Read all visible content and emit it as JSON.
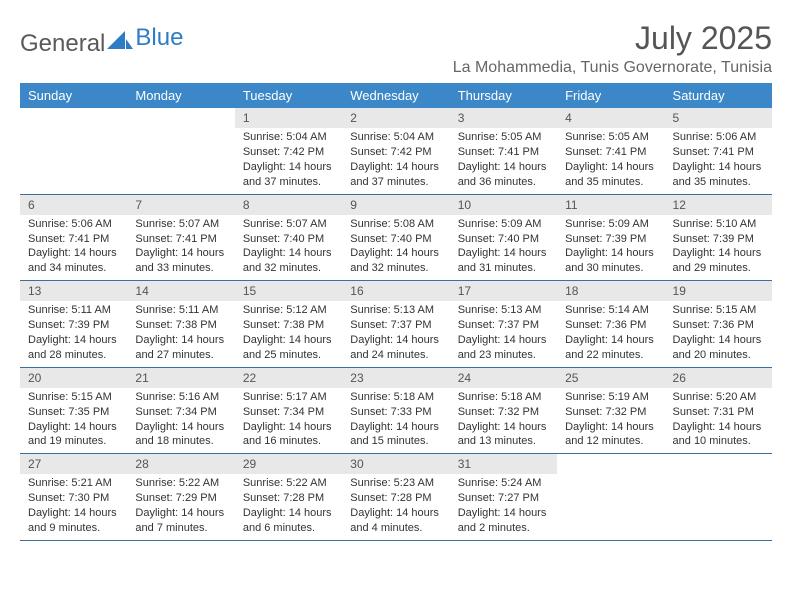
{
  "brand": {
    "part1": "General",
    "part2": "Blue"
  },
  "title": "July 2025",
  "location": "La Mohammedia, Tunis Governorate, Tunisia",
  "colors": {
    "header_bg": "#3b87c8",
    "header_text": "#ffffff",
    "daynum_bg": "#e8e8e8",
    "row_border": "#3b6fa0",
    "title_color": "#555555",
    "location_color": "#666666",
    "brand_gray": "#5a5a5a",
    "brand_blue": "#2d7dc4"
  },
  "day_headers": [
    "Sunday",
    "Monday",
    "Tuesday",
    "Wednesday",
    "Thursday",
    "Friday",
    "Saturday"
  ],
  "weeks": [
    [
      {
        "empty": true
      },
      {
        "empty": true
      },
      {
        "num": "1",
        "sunrise": "Sunrise: 5:04 AM",
        "sunset": "Sunset: 7:42 PM",
        "daylight": "Daylight: 14 hours and 37 minutes."
      },
      {
        "num": "2",
        "sunrise": "Sunrise: 5:04 AM",
        "sunset": "Sunset: 7:42 PM",
        "daylight": "Daylight: 14 hours and 37 minutes."
      },
      {
        "num": "3",
        "sunrise": "Sunrise: 5:05 AM",
        "sunset": "Sunset: 7:41 PM",
        "daylight": "Daylight: 14 hours and 36 minutes."
      },
      {
        "num": "4",
        "sunrise": "Sunrise: 5:05 AM",
        "sunset": "Sunset: 7:41 PM",
        "daylight": "Daylight: 14 hours and 35 minutes."
      },
      {
        "num": "5",
        "sunrise": "Sunrise: 5:06 AM",
        "sunset": "Sunset: 7:41 PM",
        "daylight": "Daylight: 14 hours and 35 minutes."
      }
    ],
    [
      {
        "num": "6",
        "sunrise": "Sunrise: 5:06 AM",
        "sunset": "Sunset: 7:41 PM",
        "daylight": "Daylight: 14 hours and 34 minutes."
      },
      {
        "num": "7",
        "sunrise": "Sunrise: 5:07 AM",
        "sunset": "Sunset: 7:41 PM",
        "daylight": "Daylight: 14 hours and 33 minutes."
      },
      {
        "num": "8",
        "sunrise": "Sunrise: 5:07 AM",
        "sunset": "Sunset: 7:40 PM",
        "daylight": "Daylight: 14 hours and 32 minutes."
      },
      {
        "num": "9",
        "sunrise": "Sunrise: 5:08 AM",
        "sunset": "Sunset: 7:40 PM",
        "daylight": "Daylight: 14 hours and 32 minutes."
      },
      {
        "num": "10",
        "sunrise": "Sunrise: 5:09 AM",
        "sunset": "Sunset: 7:40 PM",
        "daylight": "Daylight: 14 hours and 31 minutes."
      },
      {
        "num": "11",
        "sunrise": "Sunrise: 5:09 AM",
        "sunset": "Sunset: 7:39 PM",
        "daylight": "Daylight: 14 hours and 30 minutes."
      },
      {
        "num": "12",
        "sunrise": "Sunrise: 5:10 AM",
        "sunset": "Sunset: 7:39 PM",
        "daylight": "Daylight: 14 hours and 29 minutes."
      }
    ],
    [
      {
        "num": "13",
        "sunrise": "Sunrise: 5:11 AM",
        "sunset": "Sunset: 7:39 PM",
        "daylight": "Daylight: 14 hours and 28 minutes."
      },
      {
        "num": "14",
        "sunrise": "Sunrise: 5:11 AM",
        "sunset": "Sunset: 7:38 PM",
        "daylight": "Daylight: 14 hours and 27 minutes."
      },
      {
        "num": "15",
        "sunrise": "Sunrise: 5:12 AM",
        "sunset": "Sunset: 7:38 PM",
        "daylight": "Daylight: 14 hours and 25 minutes."
      },
      {
        "num": "16",
        "sunrise": "Sunrise: 5:13 AM",
        "sunset": "Sunset: 7:37 PM",
        "daylight": "Daylight: 14 hours and 24 minutes."
      },
      {
        "num": "17",
        "sunrise": "Sunrise: 5:13 AM",
        "sunset": "Sunset: 7:37 PM",
        "daylight": "Daylight: 14 hours and 23 minutes."
      },
      {
        "num": "18",
        "sunrise": "Sunrise: 5:14 AM",
        "sunset": "Sunset: 7:36 PM",
        "daylight": "Daylight: 14 hours and 22 minutes."
      },
      {
        "num": "19",
        "sunrise": "Sunrise: 5:15 AM",
        "sunset": "Sunset: 7:36 PM",
        "daylight": "Daylight: 14 hours and 20 minutes."
      }
    ],
    [
      {
        "num": "20",
        "sunrise": "Sunrise: 5:15 AM",
        "sunset": "Sunset: 7:35 PM",
        "daylight": "Daylight: 14 hours and 19 minutes."
      },
      {
        "num": "21",
        "sunrise": "Sunrise: 5:16 AM",
        "sunset": "Sunset: 7:34 PM",
        "daylight": "Daylight: 14 hours and 18 minutes."
      },
      {
        "num": "22",
        "sunrise": "Sunrise: 5:17 AM",
        "sunset": "Sunset: 7:34 PM",
        "daylight": "Daylight: 14 hours and 16 minutes."
      },
      {
        "num": "23",
        "sunrise": "Sunrise: 5:18 AM",
        "sunset": "Sunset: 7:33 PM",
        "daylight": "Daylight: 14 hours and 15 minutes."
      },
      {
        "num": "24",
        "sunrise": "Sunrise: 5:18 AM",
        "sunset": "Sunset: 7:32 PM",
        "daylight": "Daylight: 14 hours and 13 minutes."
      },
      {
        "num": "25",
        "sunrise": "Sunrise: 5:19 AM",
        "sunset": "Sunset: 7:32 PM",
        "daylight": "Daylight: 14 hours and 12 minutes."
      },
      {
        "num": "26",
        "sunrise": "Sunrise: 5:20 AM",
        "sunset": "Sunset: 7:31 PM",
        "daylight": "Daylight: 14 hours and 10 minutes."
      }
    ],
    [
      {
        "num": "27",
        "sunrise": "Sunrise: 5:21 AM",
        "sunset": "Sunset: 7:30 PM",
        "daylight": "Daylight: 14 hours and 9 minutes."
      },
      {
        "num": "28",
        "sunrise": "Sunrise: 5:22 AM",
        "sunset": "Sunset: 7:29 PM",
        "daylight": "Daylight: 14 hours and 7 minutes."
      },
      {
        "num": "29",
        "sunrise": "Sunrise: 5:22 AM",
        "sunset": "Sunset: 7:28 PM",
        "daylight": "Daylight: 14 hours and 6 minutes."
      },
      {
        "num": "30",
        "sunrise": "Sunrise: 5:23 AM",
        "sunset": "Sunset: 7:28 PM",
        "daylight": "Daylight: 14 hours and 4 minutes."
      },
      {
        "num": "31",
        "sunrise": "Sunrise: 5:24 AM",
        "sunset": "Sunset: 7:27 PM",
        "daylight": "Daylight: 14 hours and 2 minutes."
      },
      {
        "empty": true
      },
      {
        "empty": true
      }
    ]
  ]
}
